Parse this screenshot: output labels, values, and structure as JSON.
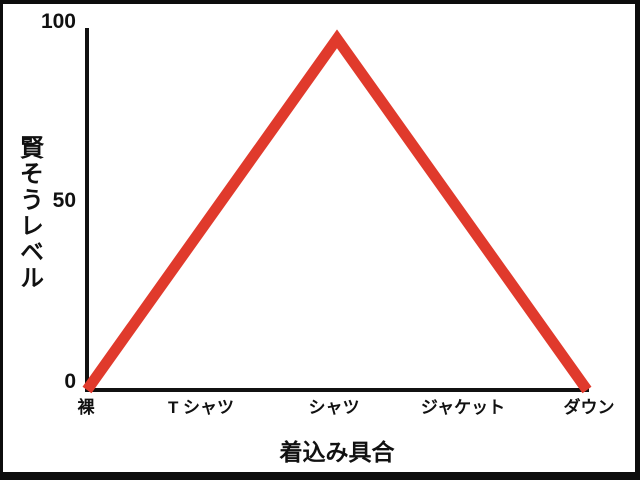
{
  "colors": {
    "background": "#ffffff",
    "border": "#0d0d0d",
    "axis": "#111111",
    "line_red": "#e03a2c"
  },
  "chart_data": {
    "type": "line",
    "title": "",
    "xlabel": "着込み具合",
    "ylabel": "賢そうレベル",
    "categories": [
      "裸",
      "T シャツ",
      "シャツ",
      "ジャケット",
      "ダウン"
    ],
    "ytick_labels_top_to_bottom": [
      "100",
      "50",
      "0"
    ],
    "yticks": [
      0,
      50,
      100
    ],
    "ylim": [
      0,
      100
    ],
    "grid": false,
    "legend": false,
    "axis_color": "#111111",
    "series": [
      {
        "name": "賢そうレベル",
        "color": "#e03a2c",
        "points": [
          {
            "category_index": 0,
            "value": 0
          },
          {
            "category_index": 2,
            "value": 97
          },
          {
            "category_index": 4,
            "value": 0
          }
        ],
        "values_at_categories": [
          0,
          51,
          97,
          46,
          0
        ]
      }
    ]
  }
}
